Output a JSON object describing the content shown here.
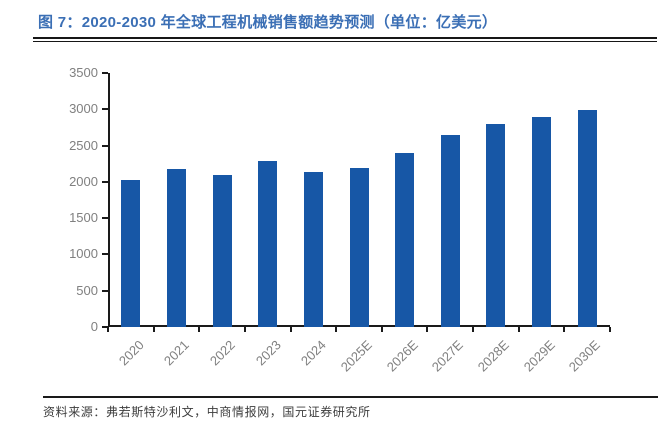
{
  "header": {
    "figure_label": "图 7：",
    "title": "图 7：2020-2030 年全球工程机械销售额趋势预测（单位：亿美元）"
  },
  "chart_data": {
    "type": "bar",
    "title": "2020-2030 年全球工程机械销售额趋势预测",
    "unit": "亿美元",
    "categories": [
      "2020",
      "2021",
      "2022",
      "2023",
      "2024",
      "2025E",
      "2026E",
      "2027E",
      "2028E",
      "2029E",
      "2030E"
    ],
    "values": [
      2020,
      2180,
      2090,
      2290,
      2140,
      2190,
      2400,
      2650,
      2800,
      2890,
      2990
    ],
    "xlabel": "",
    "ylabel": "",
    "ylim": [
      0,
      3500
    ],
    "ytick_step": 500,
    "ytick_labels": [
      "0",
      "500",
      "1000",
      "1500",
      "2000",
      "2500",
      "3000",
      "3500"
    ],
    "grid": false,
    "legend": "none"
  },
  "colors": {
    "title": "#3b6fb5",
    "bar": "#1757a6",
    "axis": "#1a1a1a",
    "tick_label": "#808080",
    "rule": "#161616",
    "source_text": "#3d3d3d"
  },
  "footer": {
    "source": "资料来源：弗若斯特沙利文，中商情报网，国元证券研究所"
  }
}
